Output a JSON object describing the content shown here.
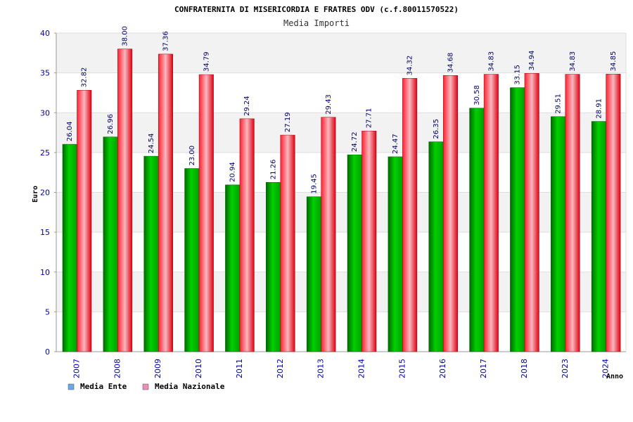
{
  "chart_data": {
    "type": "bar",
    "title": "CONFRATERNITA DI MISERICORDIA E FRATRES ODV (c.f.80011570522)",
    "subtitle": "Media Importi",
    "xlabel": "Anno",
    "ylabel": "Euro",
    "ylim": [
      0,
      40
    ],
    "yticks": [
      0,
      5,
      10,
      15,
      20,
      25,
      30,
      35,
      40
    ],
    "grid": true,
    "legend_position": "bottom-left",
    "categories": [
      "2007",
      "2008",
      "2009",
      "2010",
      "2011",
      "2012",
      "2013",
      "2014",
      "2015",
      "2016",
      "2017",
      "2018",
      "2023",
      "2024"
    ],
    "series": [
      {
        "name": "Media Ente",
        "color": "#00b000",
        "legend_color": "#6aa8e8",
        "values": [
          26.04,
          26.96,
          24.54,
          23.0,
          20.94,
          21.26,
          19.45,
          24.72,
          24.47,
          26.35,
          30.58,
          33.15,
          29.51,
          28.91
        ],
        "labels": [
          "26.04",
          "26.96",
          "24.54",
          "23.00",
          "20.94",
          "21.26",
          "19.45",
          "24.72",
          "24.47",
          "26.35",
          "30.58",
          "33.15",
          "29.51",
          "28.91"
        ]
      },
      {
        "name": "Media Nazionale",
        "color": "#e81020",
        "legend_color": "#e890b8",
        "values": [
          32.82,
          38.0,
          37.36,
          34.79,
          29.24,
          27.19,
          29.43,
          27.71,
          34.32,
          34.68,
          34.83,
          34.94,
          34.83,
          34.85
        ],
        "labels": [
          "32.82",
          "38.00",
          "37.36",
          "34.79",
          "29.24",
          "27.19",
          "29.43",
          "27.71",
          "34.32",
          "34.68",
          "34.83",
          "34.94",
          "34.83",
          "34.85"
        ]
      }
    ]
  }
}
